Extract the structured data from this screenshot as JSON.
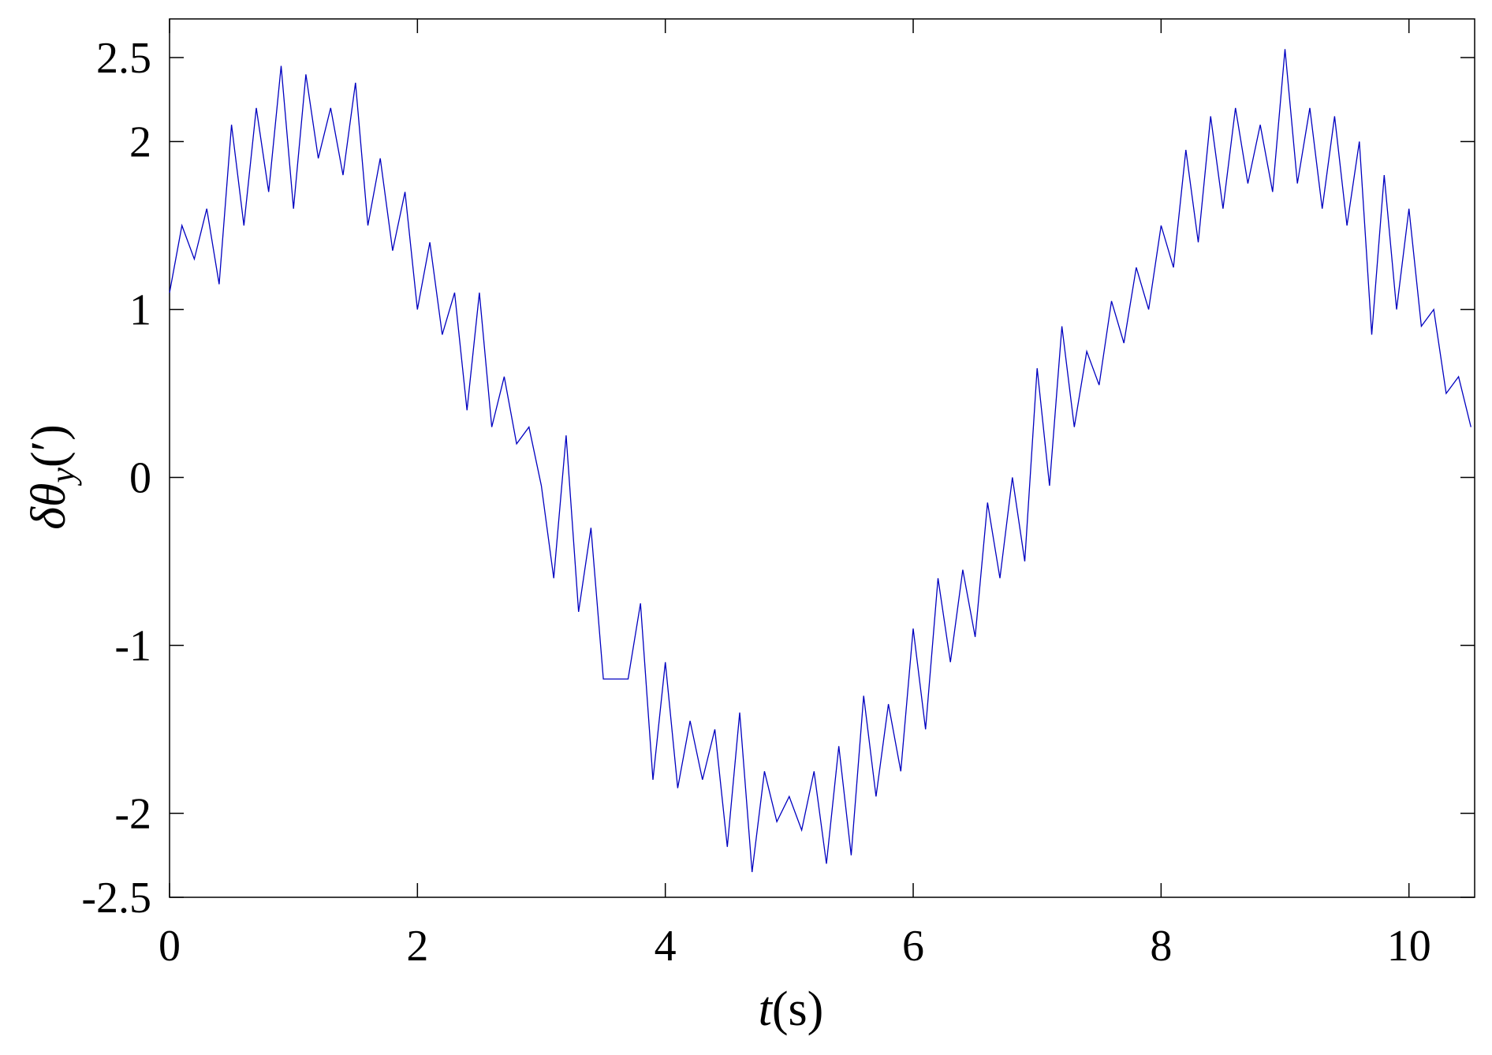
{
  "chart_data": {
    "type": "line",
    "xlabel": {
      "var": "t",
      "unit": "(s)"
    },
    "ylabel": {
      "main": "δθ",
      "sub": "y",
      "unit": "(′)"
    },
    "xlim": [
      0,
      10.53
    ],
    "xticks": [
      0,
      2,
      4,
      6,
      8,
      10
    ],
    "ylim": [
      -2.5,
      2.73
    ],
    "yticks": [
      -2.5,
      -2,
      -1,
      0,
      1,
      2,
      2.5
    ],
    "x": [
      0,
      0.1,
      0.2,
      0.3,
      0.4,
      0.5,
      0.6,
      0.7,
      0.8,
      0.9,
      1.0,
      1.1,
      1.2,
      1.3,
      1.4,
      1.5,
      1.6,
      1.7,
      1.8,
      1.9,
      2.0,
      2.1,
      2.2,
      2.3,
      2.4,
      2.5,
      2.6,
      2.7,
      2.8,
      2.9,
      3.0,
      3.1,
      3.2,
      3.3,
      3.4,
      3.5,
      3.6,
      3.7,
      3.8,
      3.9,
      4.0,
      4.1,
      4.2,
      4.3,
      4.4,
      4.5,
      4.6,
      4.7,
      4.8,
      4.9,
      5.0,
      5.1,
      5.2,
      5.3,
      5.4,
      5.5,
      5.6,
      5.7,
      5.8,
      5.9,
      6.0,
      6.1,
      6.2,
      6.3,
      6.4,
      6.5,
      6.6,
      6.7,
      6.8,
      6.9,
      7.0,
      7.1,
      7.2,
      7.3,
      7.4,
      7.5,
      7.6,
      7.7,
      7.8,
      7.9,
      8.0,
      8.1,
      8.2,
      8.3,
      8.4,
      8.5,
      8.6,
      8.7,
      8.8,
      8.9,
      9.0,
      9.1,
      9.2,
      9.3,
      9.4,
      9.5,
      9.6,
      9.7,
      9.8,
      9.9,
      10.0,
      10.1,
      10.2,
      10.3,
      10.4,
      10.5
    ],
    "series": [
      {
        "color": "#0000c0",
        "values": [
          1.1,
          1.5,
          1.3,
          1.6,
          1.15,
          2.1,
          1.5,
          2.2,
          1.7,
          2.45,
          1.6,
          2.4,
          1.9,
          2.2,
          1.8,
          2.35,
          1.5,
          1.9,
          1.35,
          1.7,
          1.0,
          1.4,
          0.85,
          1.1,
          0.4,
          1.1,
          0.3,
          0.6,
          0.2,
          0.3,
          -0.05,
          -0.6,
          0.25,
          -0.8,
          -0.3,
          -1.2,
          -1.2,
          -1.2,
          -0.75,
          -1.8,
          -1.1,
          -1.85,
          -1.45,
          -1.8,
          -1.5,
          -2.2,
          -1.4,
          -2.35,
          -1.75,
          -2.05,
          -1.9,
          -2.1,
          -1.75,
          -2.3,
          -1.6,
          -2.25,
          -1.3,
          -1.9,
          -1.35,
          -1.75,
          -0.9,
          -1.5,
          -0.6,
          -1.1,
          -0.55,
          -0.95,
          -0.15,
          -0.6,
          0.0,
          -0.5,
          0.65,
          -0.05,
          0.9,
          0.3,
          0.75,
          0.55,
          1.05,
          0.8,
          1.25,
          1.0,
          1.5,
          1.25,
          1.95,
          1.4,
          2.15,
          1.6,
          2.2,
          1.75,
          2.1,
          1.7,
          2.55,
          1.75,
          2.2,
          1.6,
          2.15,
          1.5,
          2.0,
          0.85,
          1.8,
          1.0,
          1.6,
          0.9,
          1.0,
          0.5,
          0.6,
          0.3
        ]
      }
    ]
  }
}
